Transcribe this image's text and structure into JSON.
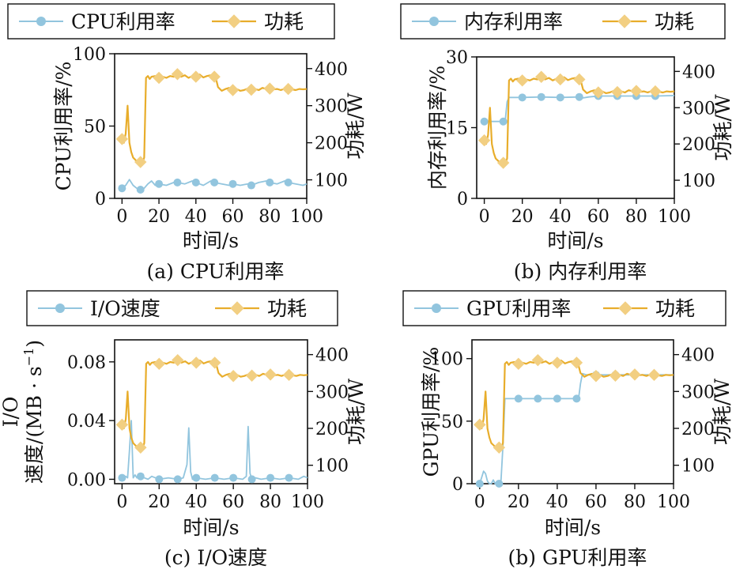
{
  "colors": {
    "utilization": "#92c5de",
    "power": "#e8ad2b",
    "marker_power": "#f2cf82"
  },
  "chart_data": [
    {
      "type": "line",
      "caption": "(a) CPU利用率",
      "xlabel": "时间/s",
      "ylabel_left": "CPU利用率/%",
      "ylabel_right": "功耗/W",
      "xlim": [
        -4,
        100
      ],
      "ylim_left": [
        0,
        100
      ],
      "ylim_right": [
        50,
        440
      ],
      "xticks": [
        0,
        20,
        40,
        60,
        80,
        100
      ],
      "yticks_left": [
        0,
        50,
        100
      ],
      "yticks_right": [
        100,
        200,
        300,
        400
      ],
      "legend": [
        "CPU利用率",
        "功耗"
      ],
      "series": [
        {
          "name": "CPU利用率",
          "axis": "left",
          "x": [
            0,
            2,
            4,
            6,
            8,
            10,
            12,
            14,
            16,
            18,
            20,
            24,
            28,
            30,
            34,
            38,
            40,
            44,
            48,
            50,
            54,
            58,
            60,
            64,
            68,
            70,
            74,
            78,
            80,
            84,
            88,
            90,
            94,
            98,
            100
          ],
          "y": [
            7,
            9,
            13,
            9,
            7,
            6,
            7,
            10,
            12,
            9,
            10,
            9,
            11,
            11,
            10,
            12,
            11,
            9,
            12,
            11,
            10,
            9,
            10,
            9,
            10,
            9,
            11,
            12,
            11,
            10,
            12,
            11,
            10,
            9,
            10
          ],
          "markers_x": [
            0,
            10,
            20,
            30,
            40,
            50,
            60,
            70,
            80,
            90
          ]
        },
        {
          "name": "功耗",
          "axis": "right",
          "x": [
            0,
            1,
            2,
            3,
            4,
            5,
            6,
            7,
            8,
            9,
            10,
            11,
            12,
            13,
            14,
            15,
            16,
            18,
            20,
            22,
            24,
            26,
            28,
            30,
            32,
            34,
            36,
            38,
            40,
            42,
            44,
            46,
            48,
            50,
            51,
            52,
            53,
            54,
            56,
            58,
            60,
            62,
            64,
            66,
            68,
            70,
            72,
            74,
            76,
            78,
            80,
            82,
            84,
            86,
            88,
            90,
            92,
            94,
            96,
            98,
            100
          ],
          "y": [
            210,
            200,
            225,
            300,
            200,
            175,
            160,
            155,
            150,
            145,
            148,
            145,
            160,
            375,
            380,
            372,
            378,
            380,
            375,
            378,
            375,
            380,
            378,
            385,
            378,
            382,
            375,
            380,
            378,
            384,
            376,
            380,
            382,
            378,
            370,
            350,
            345,
            340,
            345,
            348,
            342,
            345,
            340,
            342,
            346,
            343,
            345,
            342,
            348,
            345,
            346,
            344,
            345,
            342,
            346,
            345,
            344,
            342,
            345,
            344,
            345
          ],
          "markers_x": [
            0,
            10,
            20,
            30,
            40,
            50,
            60,
            70,
            80,
            90
          ]
        }
      ]
    },
    {
      "type": "line",
      "caption": "(b) 内存利用率",
      "xlabel": "时间/s",
      "ylabel_left": "内存利用率/%",
      "ylabel_right": "功耗/W",
      "xlim": [
        -4,
        100
      ],
      "ylim_left": [
        0,
        30
      ],
      "ylim_right": [
        50,
        440
      ],
      "xticks": [
        0,
        20,
        40,
        60,
        80,
        100
      ],
      "yticks_left": [
        0,
        15,
        30
      ],
      "yticks_right": [
        100,
        200,
        300,
        400
      ],
      "legend": [
        "内存利用率",
        "功耗"
      ],
      "series": [
        {
          "name": "内存利用率",
          "axis": "left",
          "x": [
            0,
            10,
            11,
            12,
            13,
            20,
            30,
            40,
            50,
            51,
            52,
            55,
            60,
            70,
            80,
            90,
            100
          ],
          "y": [
            16.3,
            16.3,
            16.5,
            20.5,
            21.4,
            21.4,
            21.5,
            21.4,
            21.5,
            21.5,
            21.3,
            21.5,
            21.7,
            21.7,
            21.7,
            21.7,
            21.8
          ],
          "markers_x": [
            0,
            10,
            20,
            30,
            40,
            50,
            60,
            70,
            80,
            90
          ]
        },
        {
          "name": "功耗",
          "axis": "right",
          "x": [
            0,
            1,
            2,
            3,
            4,
            5,
            6,
            7,
            8,
            9,
            10,
            11,
            12,
            13,
            14,
            15,
            16,
            18,
            20,
            22,
            24,
            26,
            28,
            30,
            32,
            34,
            36,
            38,
            40,
            42,
            44,
            46,
            48,
            50,
            51,
            52,
            53,
            54,
            56,
            58,
            60,
            62,
            64,
            66,
            68,
            70,
            72,
            74,
            76,
            78,
            80,
            82,
            84,
            86,
            88,
            90,
            92,
            94,
            96,
            98,
            100
          ],
          "y": [
            210,
            200,
            225,
            300,
            200,
            175,
            160,
            155,
            150,
            145,
            148,
            145,
            160,
            375,
            380,
            372,
            378,
            380,
            375,
            378,
            375,
            380,
            378,
            385,
            378,
            382,
            375,
            380,
            378,
            384,
            376,
            380,
            382,
            378,
            370,
            350,
            345,
            340,
            345,
            348,
            342,
            345,
            340,
            342,
            346,
            343,
            345,
            342,
            348,
            345,
            346,
            344,
            345,
            342,
            346,
            345,
            344,
            342,
            345,
            344,
            345
          ],
          "markers_x": [
            0,
            10,
            20,
            30,
            40,
            50,
            60,
            70,
            80,
            90
          ]
        }
      ]
    },
    {
      "type": "line",
      "caption": "(c) I/O速度",
      "xlabel": "时间/s",
      "ylabel_left_line1": "I/O",
      "ylabel_left_line2": "速度/(MB · s",
      "ylabel_left_sup": "−1",
      "ylabel_left_close": ")",
      "ylabel_right": "功耗/W",
      "xlim": [
        -4,
        100
      ],
      "ylim_left": [
        -0.003,
        0.095
      ],
      "ylim_right": [
        50,
        440
      ],
      "xticks": [
        0,
        20,
        40,
        60,
        80,
        100
      ],
      "yticks_left": [
        0.0,
        0.04,
        0.08
      ],
      "yticks_left_labels": [
        "0.00",
        "0.04",
        "0.08"
      ],
      "yticks_right": [
        100,
        200,
        300,
        400
      ],
      "legend": [
        "I/O速度",
        "功耗"
      ],
      "series": [
        {
          "name": "I/O速度",
          "axis": "left",
          "x": [
            0,
            2,
            3,
            4,
            5,
            6,
            7,
            8,
            10,
            12,
            14,
            16,
            18,
            20,
            25,
            30,
            33,
            35,
            36,
            37,
            38,
            40,
            45,
            50,
            55,
            60,
            65,
            67,
            68,
            69,
            70,
            72,
            75,
            80,
            85,
            90,
            95,
            98,
            100
          ],
          "y": [
            0.001,
            0.002,
            0.001,
            0.02,
            0.04,
            0.001,
            0.003,
            0.001,
            0.002,
            0.001,
            0.0,
            0.002,
            0.001,
            0.0,
            0.001,
            0.0,
            0.001,
            0.01,
            0.035,
            0.005,
            0.0,
            0.001,
            0.0,
            0.001,
            0.0,
            0.001,
            0.0,
            0.002,
            0.036,
            0.004,
            0.0,
            0.001,
            0.0,
            0.001,
            0.0,
            0.001,
            0.0,
            0.002,
            0.001
          ],
          "markers_x": [
            0,
            10,
            20,
            30,
            40,
            50,
            60,
            70,
            80,
            90
          ]
        },
        {
          "name": "功耗",
          "axis": "right",
          "x": [
            0,
            1,
            2,
            3,
            4,
            5,
            6,
            7,
            8,
            9,
            10,
            11,
            12,
            13,
            14,
            15,
            16,
            18,
            20,
            22,
            24,
            26,
            28,
            30,
            32,
            34,
            36,
            38,
            40,
            42,
            44,
            46,
            48,
            50,
            51,
            52,
            53,
            54,
            56,
            58,
            60,
            62,
            64,
            66,
            68,
            70,
            72,
            74,
            76,
            78,
            80,
            82,
            84,
            86,
            88,
            90,
            92,
            94,
            96,
            98,
            100
          ],
          "y": [
            210,
            200,
            225,
            300,
            200,
            175,
            160,
            155,
            150,
            145,
            148,
            145,
            160,
            375,
            380,
            372,
            378,
            380,
            375,
            378,
            375,
            380,
            378,
            385,
            378,
            382,
            375,
            380,
            378,
            384,
            376,
            380,
            382,
            378,
            370,
            350,
            345,
            340,
            345,
            348,
            342,
            345,
            340,
            342,
            346,
            343,
            345,
            342,
            348,
            345,
            346,
            344,
            345,
            342,
            346,
            345,
            344,
            342,
            345,
            344,
            345
          ],
          "markers_x": [
            0,
            10,
            20,
            30,
            40,
            50,
            60,
            70,
            80,
            90
          ]
        }
      ]
    },
    {
      "type": "line",
      "caption": "(b) GPU利用率",
      "xlabel": "时间/s",
      "ylabel_left": "GPU利用率/%",
      "ylabel_right": "功耗/W",
      "xlim": [
        -4,
        100
      ],
      "ylim_left": [
        0,
        115
      ],
      "ylim_right": [
        50,
        440
      ],
      "xticks": [
        0,
        20,
        40,
        60,
        80,
        100
      ],
      "yticks_left": [
        0,
        50,
        100
      ],
      "yticks_right": [
        100,
        200,
        300,
        400
      ],
      "legend": [
        "GPU利用率",
        "功耗"
      ],
      "series": [
        {
          "name": "GPU利用率",
          "axis": "left",
          "x": [
            0,
            1,
            2,
            3,
            4,
            5,
            6,
            7,
            8,
            9,
            10,
            11,
            12,
            13,
            20,
            30,
            40,
            50,
            51,
            52,
            53,
            55,
            60,
            70,
            80,
            90,
            100
          ],
          "y": [
            0,
            5,
            10,
            8,
            2,
            0,
            0,
            3,
            0,
            2,
            0,
            3,
            30,
            68,
            68,
            68,
            68,
            68,
            68,
            80,
            88,
            87,
            87,
            87,
            87,
            87,
            87
          ],
          "markers_x": [
            0,
            10,
            20,
            30,
            40,
            50,
            60,
            70,
            80,
            90
          ]
        },
        {
          "name": "功耗",
          "axis": "right",
          "x": [
            0,
            1,
            2,
            3,
            4,
            5,
            6,
            7,
            8,
            9,
            10,
            11,
            12,
            13,
            14,
            15,
            16,
            18,
            20,
            22,
            24,
            26,
            28,
            30,
            32,
            34,
            36,
            38,
            40,
            42,
            44,
            46,
            48,
            50,
            51,
            52,
            53,
            54,
            56,
            58,
            60,
            62,
            64,
            66,
            68,
            70,
            72,
            74,
            76,
            78,
            80,
            82,
            84,
            86,
            88,
            90,
            92,
            94,
            96,
            98,
            100
          ],
          "y": [
            210,
            200,
            225,
            300,
            200,
            175,
            160,
            155,
            150,
            145,
            148,
            145,
            160,
            375,
            380,
            372,
            378,
            380,
            375,
            378,
            375,
            380,
            378,
            385,
            378,
            382,
            375,
            380,
            378,
            384,
            376,
            380,
            382,
            378,
            370,
            350,
            345,
            340,
            345,
            348,
            342,
            345,
            340,
            342,
            346,
            343,
            345,
            342,
            348,
            345,
            346,
            344,
            345,
            342,
            346,
            345,
            344,
            342,
            345,
            344,
            345
          ],
          "markers_x": [
            0,
            10,
            20,
            30,
            40,
            50,
            60,
            70,
            80,
            90
          ]
        }
      ]
    }
  ]
}
